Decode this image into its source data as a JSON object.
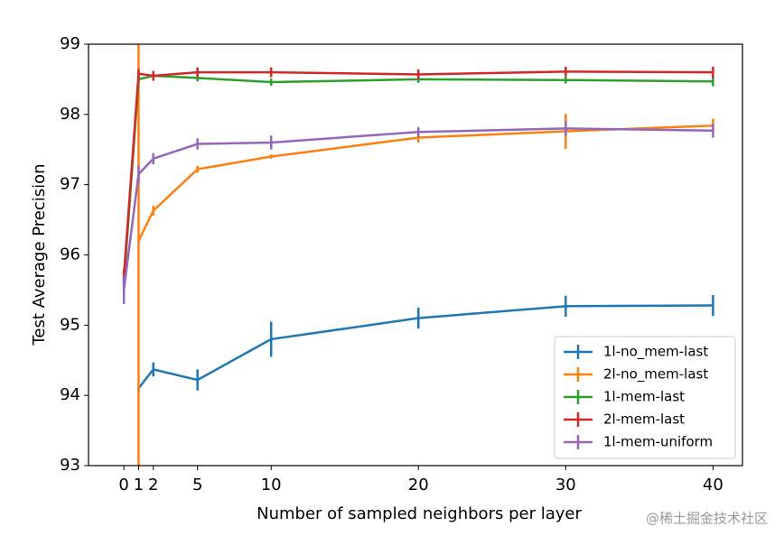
{
  "chart_data": {
    "type": "line",
    "x_label": "Number of sampled neighbors per layer",
    "y_label": "Test Average Precision",
    "x": [
      0,
      1,
      2,
      5,
      10,
      20,
      30,
      40
    ],
    "xlim": [
      -2.4,
      42
    ],
    "xticks": [
      0,
      1,
      2,
      5,
      10,
      20,
      30,
      40
    ],
    "ylim": [
      93,
      99
    ],
    "yticks": [
      93,
      94,
      95,
      96,
      97,
      98,
      99
    ],
    "legend": "lower right",
    "series": [
      {
        "name": "1l-no_mem-last",
        "color": "#1f77b4",
        "values": [
          null,
          94.1,
          94.37,
          94.22,
          94.8,
          95.1,
          95.27,
          95.28
        ],
        "errors": [
          null,
          0.05,
          0.1,
          0.15,
          0.25,
          0.15,
          0.15,
          0.15
        ]
      },
      {
        "name": "2l-no_mem-last",
        "color": "#ff7f0e",
        "values": [
          null,
          96.2,
          96.63,
          97.22,
          97.4,
          97.67,
          97.76,
          97.84
        ],
        "errors": [
          null,
          3.5,
          0.07,
          0.05,
          0.03,
          0.07,
          0.25,
          0.1
        ]
      },
      {
        "name": "1l-mem-last",
        "color": "#2ca02c",
        "values": [
          95.6,
          98.5,
          98.55,
          98.52,
          98.46,
          98.5,
          98.49,
          98.47
        ],
        "errors": [
          0.1,
          0.05,
          0.05,
          0.05,
          0.05,
          0.05,
          0.05,
          0.07
        ]
      },
      {
        "name": "2l-mem-last",
        "color": "#d62728",
        "values": [
          95.7,
          98.58,
          98.55,
          98.6,
          98.6,
          98.57,
          98.61,
          98.6
        ],
        "errors": [
          0.1,
          0.07,
          0.07,
          0.07,
          0.07,
          0.07,
          0.07,
          0.08
        ]
      },
      {
        "name": "1l-mem-uniform",
        "color": "#9467bd",
        "values": [
          95.5,
          97.15,
          97.37,
          97.58,
          97.6,
          97.75,
          97.8,
          97.77
        ],
        "errors": [
          0.2,
          0.12,
          0.08,
          0.08,
          0.1,
          0.07,
          0.1,
          0.1
        ]
      }
    ],
    "watermark": "@稀土掘金技术社区"
  }
}
